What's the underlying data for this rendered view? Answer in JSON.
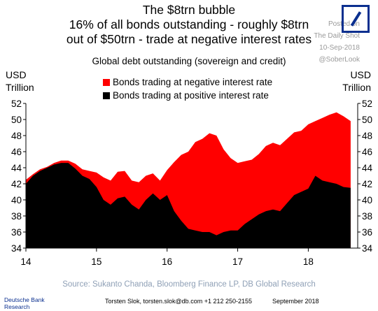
{
  "header": {
    "title_line1": "The $8trn bubble",
    "title_line2": "16% of all bonds outstanding - roughly $8trn",
    "title_line3": "out of $50trn - trade at negative interest rates",
    "watermark_line1": "Posted on",
    "watermark_line2": "The Daily Shot",
    "watermark_line3": "10-Sep-2018",
    "watermark_line4": "@SoberLook"
  },
  "colors": {
    "negative": "#ff0000",
    "positive": "#000000",
    "logo": "#0a2f8f",
    "source": "#8fa0b6"
  },
  "chart_data": {
    "type": "area",
    "title": "Global debt outstanding (sovereign and credit)",
    "ylabel_left": [
      "USD",
      "Trillion"
    ],
    "ylabel_right": [
      "USD",
      "Trillion"
    ],
    "ylim": [
      34,
      52
    ],
    "yticks": [
      34,
      36,
      38,
      40,
      42,
      44,
      46,
      48,
      50,
      52
    ],
    "xlim": [
      2014.0,
      2018.7
    ],
    "xticks": [
      {
        "value": 2014.0,
        "label": "14"
      },
      {
        "value": 2015.0,
        "label": "15"
      },
      {
        "value": 2016.0,
        "label": "16"
      },
      {
        "value": 2017.0,
        "label": "17"
      },
      {
        "value": 2018.0,
        "label": "18"
      }
    ],
    "legend": [
      "Bonds trading at negative interest rate",
      "Bonds trading at positive interest rate"
    ],
    "legend_position": "top-center",
    "series": [
      {
        "name": "Bonds trading at negative interest rate",
        "comment": "total outstanding (top of red area)",
        "x": [
          2014.0,
          2014.1,
          2014.2,
          2014.3,
          2014.4,
          2014.5,
          2014.6,
          2014.7,
          2014.8,
          2014.9,
          2015.0,
          2015.1,
          2015.2,
          2015.3,
          2015.4,
          2015.5,
          2015.6,
          2015.7,
          2015.8,
          2015.9,
          2016.0,
          2016.1,
          2016.2,
          2016.3,
          2016.4,
          2016.5,
          2016.6,
          2016.7,
          2016.8,
          2016.9,
          2017.0,
          2017.1,
          2017.2,
          2017.3,
          2017.4,
          2017.5,
          2017.6,
          2017.7,
          2017.8,
          2017.9,
          2018.0,
          2018.1,
          2018.2,
          2018.3,
          2018.4,
          2018.5,
          2018.6
        ],
        "values": [
          42.5,
          43.2,
          43.8,
          44.1,
          44.6,
          44.9,
          44.9,
          44.5,
          43.8,
          43.6,
          43.4,
          42.8,
          42.4,
          43.5,
          43.6,
          42.4,
          42.2,
          43.0,
          43.3,
          42.4,
          43.7,
          44.7,
          45.6,
          46.0,
          47.2,
          47.6,
          48.3,
          48.0,
          46.3,
          45.2,
          44.6,
          44.8,
          45.0,
          45.7,
          46.7,
          47.1,
          46.8,
          47.6,
          48.4,
          48.6,
          49.4,
          49.8,
          50.2,
          50.6,
          50.9,
          50.4,
          49.8
        ]
      },
      {
        "name": "Bonds trading at positive interest rate",
        "x": [
          2014.0,
          2014.1,
          2014.2,
          2014.3,
          2014.4,
          2014.5,
          2014.6,
          2014.7,
          2014.8,
          2014.9,
          2015.0,
          2015.1,
          2015.2,
          2015.3,
          2015.4,
          2015.5,
          2015.6,
          2015.7,
          2015.8,
          2015.9,
          2016.0,
          2016.1,
          2016.2,
          2016.3,
          2016.4,
          2016.5,
          2016.6,
          2016.7,
          2016.8,
          2016.9,
          2017.0,
          2017.1,
          2017.2,
          2017.3,
          2017.4,
          2017.5,
          2017.6,
          2017.7,
          2017.8,
          2017.9,
          2018.0,
          2018.1,
          2018.2,
          2018.3,
          2018.4,
          2018.5,
          2018.6
        ],
        "values": [
          42.0,
          43.0,
          43.6,
          44.0,
          44.4,
          44.6,
          44.6,
          43.9,
          43.0,
          42.6,
          41.6,
          40.0,
          39.4,
          40.2,
          40.4,
          39.4,
          38.8,
          40.0,
          40.8,
          40.0,
          40.6,
          38.6,
          37.4,
          36.4,
          36.2,
          36.0,
          36.0,
          35.6,
          36.0,
          36.2,
          36.2,
          37.0,
          37.6,
          38.2,
          38.6,
          38.8,
          38.6,
          39.6,
          40.6,
          41.0,
          41.4,
          43.0,
          42.4,
          42.2,
          42.0,
          41.6,
          41.5
        ]
      }
    ]
  },
  "footer": {
    "source": "Source: Sukanto Chanda, Bloomberg Finance LP, DB Global Research",
    "brand_line1": "Deutsche Bank",
    "brand_line2": "Research",
    "author": "Torsten Slok, torsten.slok@db.com  +1 212 250-2155",
    "date": "September 2018"
  }
}
